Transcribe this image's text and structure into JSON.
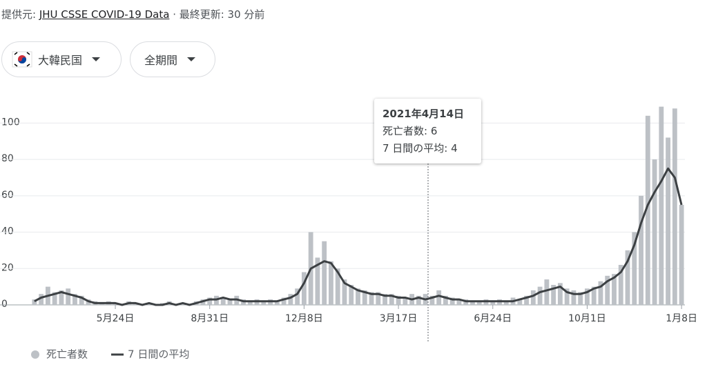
{
  "header": {
    "source_label": "提供元:",
    "source_link": "JHU CSSE COVID-19 Data",
    "updated": "· 最終更新: 30 分前"
  },
  "filters": {
    "region": "大韓民国",
    "period": "全期間"
  },
  "tooltip": {
    "title": "2021年4月14日",
    "lines": [
      "死亡者数: 6",
      "7 日間の平均: 4"
    ]
  },
  "chart_data": {
    "type": "bar",
    "categories": [
      null,
      null,
      null,
      null,
      null,
      null,
      null,
      null,
      null,
      null,
      null,
      null,
      "5月24日",
      null,
      null,
      null,
      null,
      null,
      null,
      null,
      null,
      null,
      null,
      null,
      null,
      null,
      "8月31日",
      null,
      null,
      null,
      null,
      null,
      null,
      null,
      null,
      null,
      null,
      null,
      null,
      null,
      "12月8日",
      null,
      null,
      null,
      null,
      null,
      null,
      null,
      null,
      null,
      null,
      null,
      null,
      null,
      "3月17日",
      null,
      null,
      null,
      null,
      null,
      null,
      null,
      null,
      null,
      null,
      null,
      null,
      null,
      "6月24日",
      null,
      null,
      null,
      null,
      null,
      null,
      null,
      null,
      null,
      null,
      null,
      null,
      null,
      "10月1日",
      null,
      null,
      null,
      null,
      null,
      null,
      null,
      null,
      null,
      null,
      null,
      null,
      null,
      "1月8日"
    ],
    "series": [
      {
        "name": "死亡者数",
        "type": "bar",
        "color": "#bdc1c6",
        "values": [
          3,
          6,
          10,
          7,
          8,
          9,
          6,
          5,
          3,
          2,
          1,
          2,
          1,
          0,
          2,
          1,
          0,
          1,
          0,
          1,
          2,
          0,
          1,
          0,
          2,
          3,
          4,
          5,
          4,
          3,
          5,
          3,
          2,
          3,
          2,
          3,
          2,
          4,
          6,
          9,
          18,
          40,
          26,
          35,
          24,
          20,
          14,
          11,
          9,
          8,
          7,
          7,
          6,
          6,
          5,
          4,
          6,
          5,
          6,
          5,
          8,
          5,
          4,
          3,
          3,
          2,
          2,
          3,
          2,
          3,
          2,
          4,
          3,
          5,
          8,
          10,
          14,
          11,
          12,
          9,
          8,
          7,
          9,
          10,
          13,
          16,
          17,
          22,
          30,
          40,
          60,
          104,
          80,
          109,
          92,
          108,
          55
        ]
      },
      {
        "name": "7 日間の平均",
        "type": "line",
        "color": "#3c4043",
        "values": [
          2,
          4,
          5,
          6,
          7,
          6,
          5,
          4,
          2,
          1,
          1,
          1,
          1,
          0,
          1,
          1,
          0,
          1,
          0,
          0,
          1,
          0,
          1,
          0,
          1,
          2,
          3,
          3,
          4,
          3,
          3,
          2,
          2,
          2,
          2,
          2,
          2,
          3,
          4,
          6,
          12,
          20,
          22,
          24,
          23,
          18,
          12,
          10,
          8,
          7,
          6,
          6,
          5,
          5,
          4,
          4,
          3,
          4,
          3,
          4,
          5,
          4,
          3,
          3,
          2,
          2,
          2,
          2,
          2,
          2,
          2,
          2,
          3,
          4,
          5,
          7,
          8,
          9,
          10,
          7,
          6,
          6,
          7,
          9,
          10,
          13,
          15,
          18,
          24,
          33,
          45,
          55,
          62,
          68,
          75,
          70,
          55
        ]
      }
    ],
    "ylim": [
      0,
      110
    ],
    "yticks": [
      0,
      20,
      40,
      60,
      80,
      100
    ],
    "grid": true
  }
}
